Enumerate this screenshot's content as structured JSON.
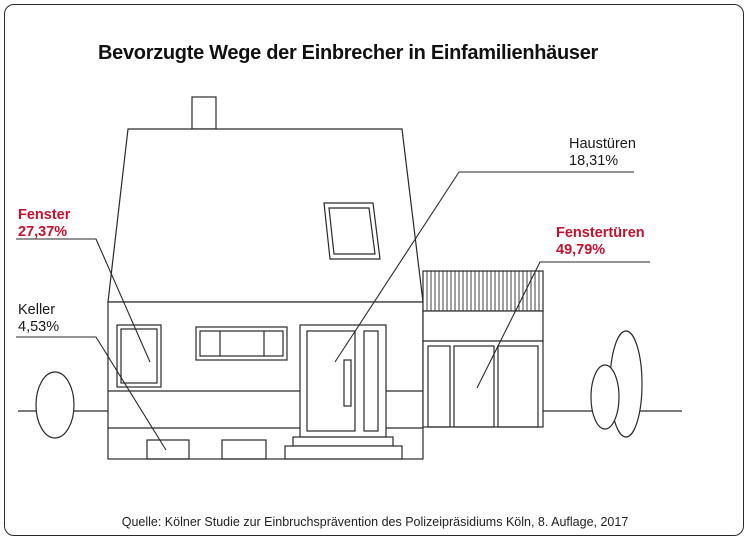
{
  "title": "Bevorzugte Wege der Einbrecher in Einfamilienhäuser",
  "source": "Quelle: Kölner Studie zur Einbruchsprävention des Polizeipräsidiums Köln, 8. Auflage, 2017",
  "entry_points": [
    {
      "name": "Fenster",
      "value": "27,37%",
      "highlight": true
    },
    {
      "name": "Keller",
      "value": "4,53%",
      "highlight": false
    },
    {
      "name": "Haustüren",
      "value": "18,31%",
      "highlight": false
    },
    {
      "name": "Fenstertüren",
      "value": "49,79%",
      "highlight": true
    }
  ],
  "colors": {
    "highlight": "#c8102e",
    "line": "#2a2a2a"
  }
}
